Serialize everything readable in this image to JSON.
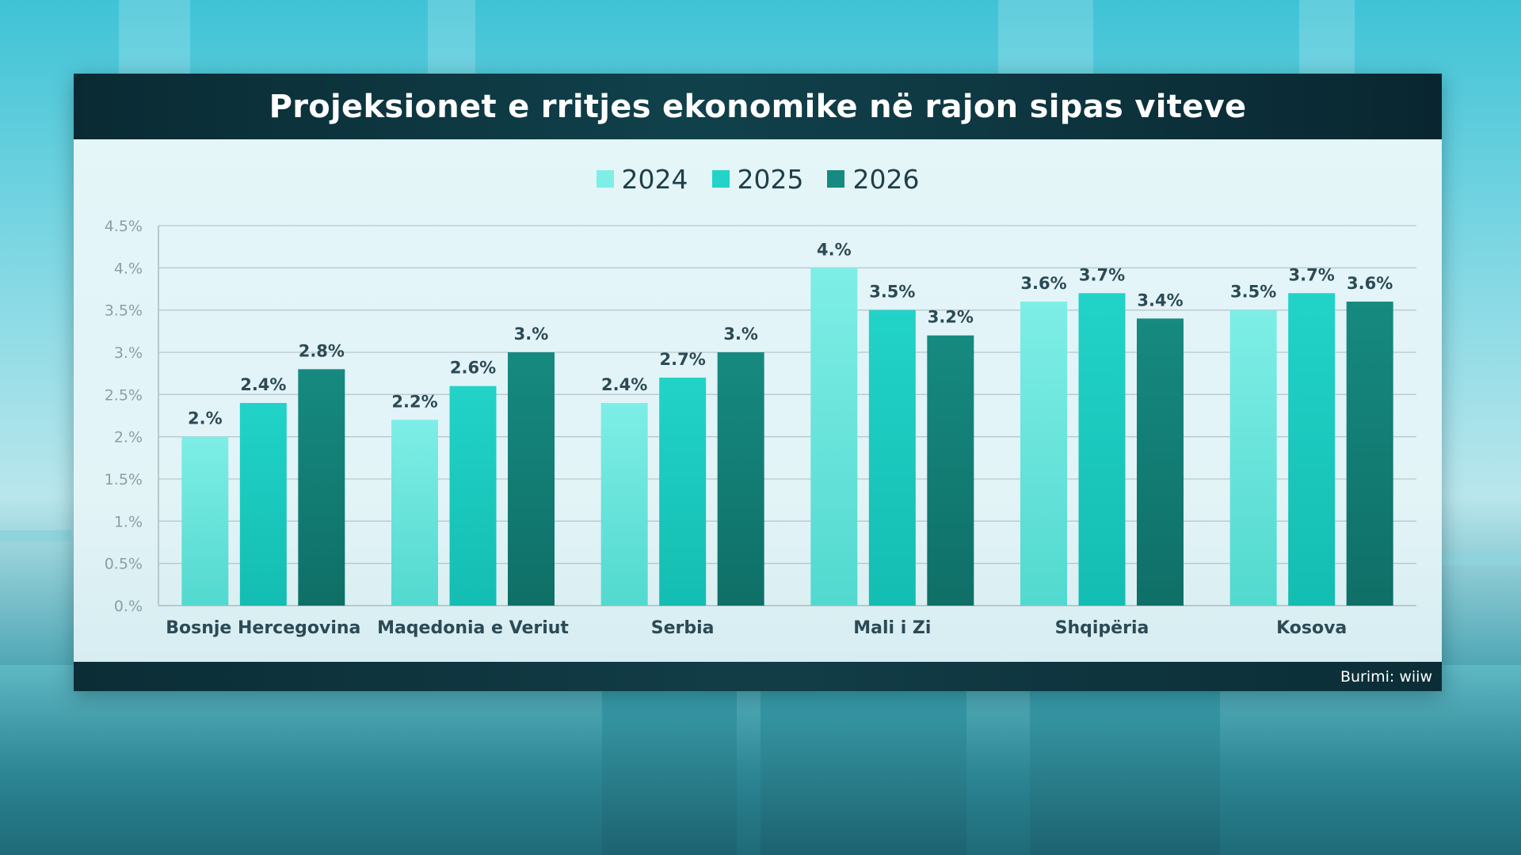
{
  "title": "Projeksionet e rritjes ekonomike në rajon sipas viteve",
  "source": "Burimi: wiiw",
  "colors": {
    "2024": "#7eeee6",
    "2025": "#22d3c8",
    "2026": "#168a80",
    "title_bg": "#0d3640",
    "gridline": "#b8c8cd"
  },
  "chart_data": {
    "type": "bar",
    "title": "Projeksionet e rritjes ekonomike në rajon sipas viteve",
    "xlabel": "",
    "ylabel": "",
    "categories": [
      "Bosnje Hercegovina",
      "Maqedonia e Veriut",
      "Serbia",
      "Mali i Zi",
      "Shqipëria",
      "Kosova"
    ],
    "series": [
      {
        "name": "2024",
        "values": [
          2.0,
          2.2,
          2.4,
          4.0,
          3.6,
          3.5
        ],
        "labels": [
          "2.%",
          "2.2%",
          "2.4%",
          "4.%",
          "3.6%",
          "3.5%"
        ]
      },
      {
        "name": "2025",
        "values": [
          2.4,
          2.6,
          2.7,
          3.5,
          3.7,
          3.7
        ],
        "labels": [
          "2.4%",
          "2.6%",
          "2.7%",
          "3.5%",
          "3.7%",
          "3.7%"
        ]
      },
      {
        "name": "2026",
        "values": [
          2.8,
          3.0,
          3.0,
          3.2,
          3.4,
          3.6
        ],
        "labels": [
          "2.8%",
          "3.%",
          "3.%",
          "3.2%",
          "3.4%",
          "3.6%"
        ]
      }
    ],
    "ylim": [
      0,
      4.5
    ],
    "yticks": [
      0,
      0.5,
      1,
      1.5,
      2,
      2.5,
      3,
      3.5,
      4,
      4.5
    ],
    "ytick_labels": [
      "0.%",
      "0.5%",
      "1.%",
      "1.5%",
      "2.%",
      "2.5%",
      "3.%",
      "3.5%",
      "4.%",
      "4.5%"
    ],
    "grid": true,
    "legend_position": "top-center"
  }
}
